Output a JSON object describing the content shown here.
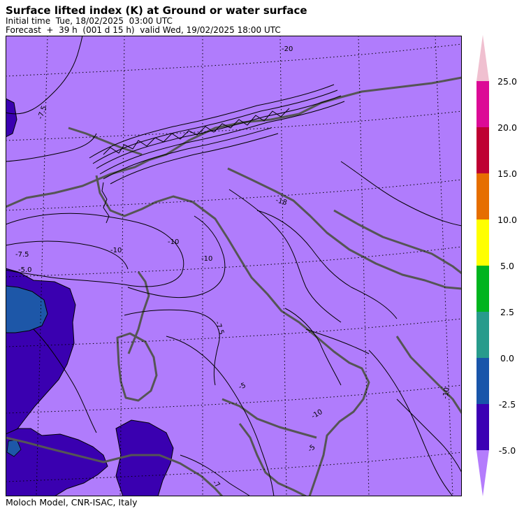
{
  "header": {
    "title": "Surface lifted index (K) at Ground or water surface",
    "initial_time": "Initial time  Tue, 18/02/2025  03:00 UTC",
    "forecast": "Forecast  +  39 h  (001 d 15 h)  valid Wed, 19/02/2025 18:00 UTC"
  },
  "footer": {
    "credit": "Moloch Model, CNR-ISAC, Italy"
  },
  "colors": {
    "background_fill": "#b07cfc",
    "low_fill": "#3a00b0",
    "lowest_fill": "#1d57a8",
    "contour": "#000000",
    "coastline": "#555555"
  },
  "legend": {
    "unit": "K",
    "labels": [
      "25.0",
      "20.0",
      "15.0",
      "10.0",
      "5.0",
      "2.5",
      "0.0",
      "-2.5",
      "-5.0"
    ],
    "bands": [
      {
        "color": "#f0c0d0"
      },
      {
        "color": "#dc0a96"
      },
      {
        "color": "#be0032"
      },
      {
        "color": "#e66e00"
      },
      {
        "color": "#ffff00"
      },
      {
        "color": "#00b41e"
      },
      {
        "color": "#289b8c"
      },
      {
        "color": "#1955aa"
      },
      {
        "color": "#3c00b4"
      },
      {
        "color": "#b47cfc"
      }
    ]
  },
  "contour_labels": [
    "-7.5",
    "-20",
    "-10",
    "-18",
    "-10",
    "-7.5",
    "-5.0",
    "-10",
    "-7.5",
    "-5",
    "-10",
    "-5",
    "-10",
    "-7"
  ]
}
